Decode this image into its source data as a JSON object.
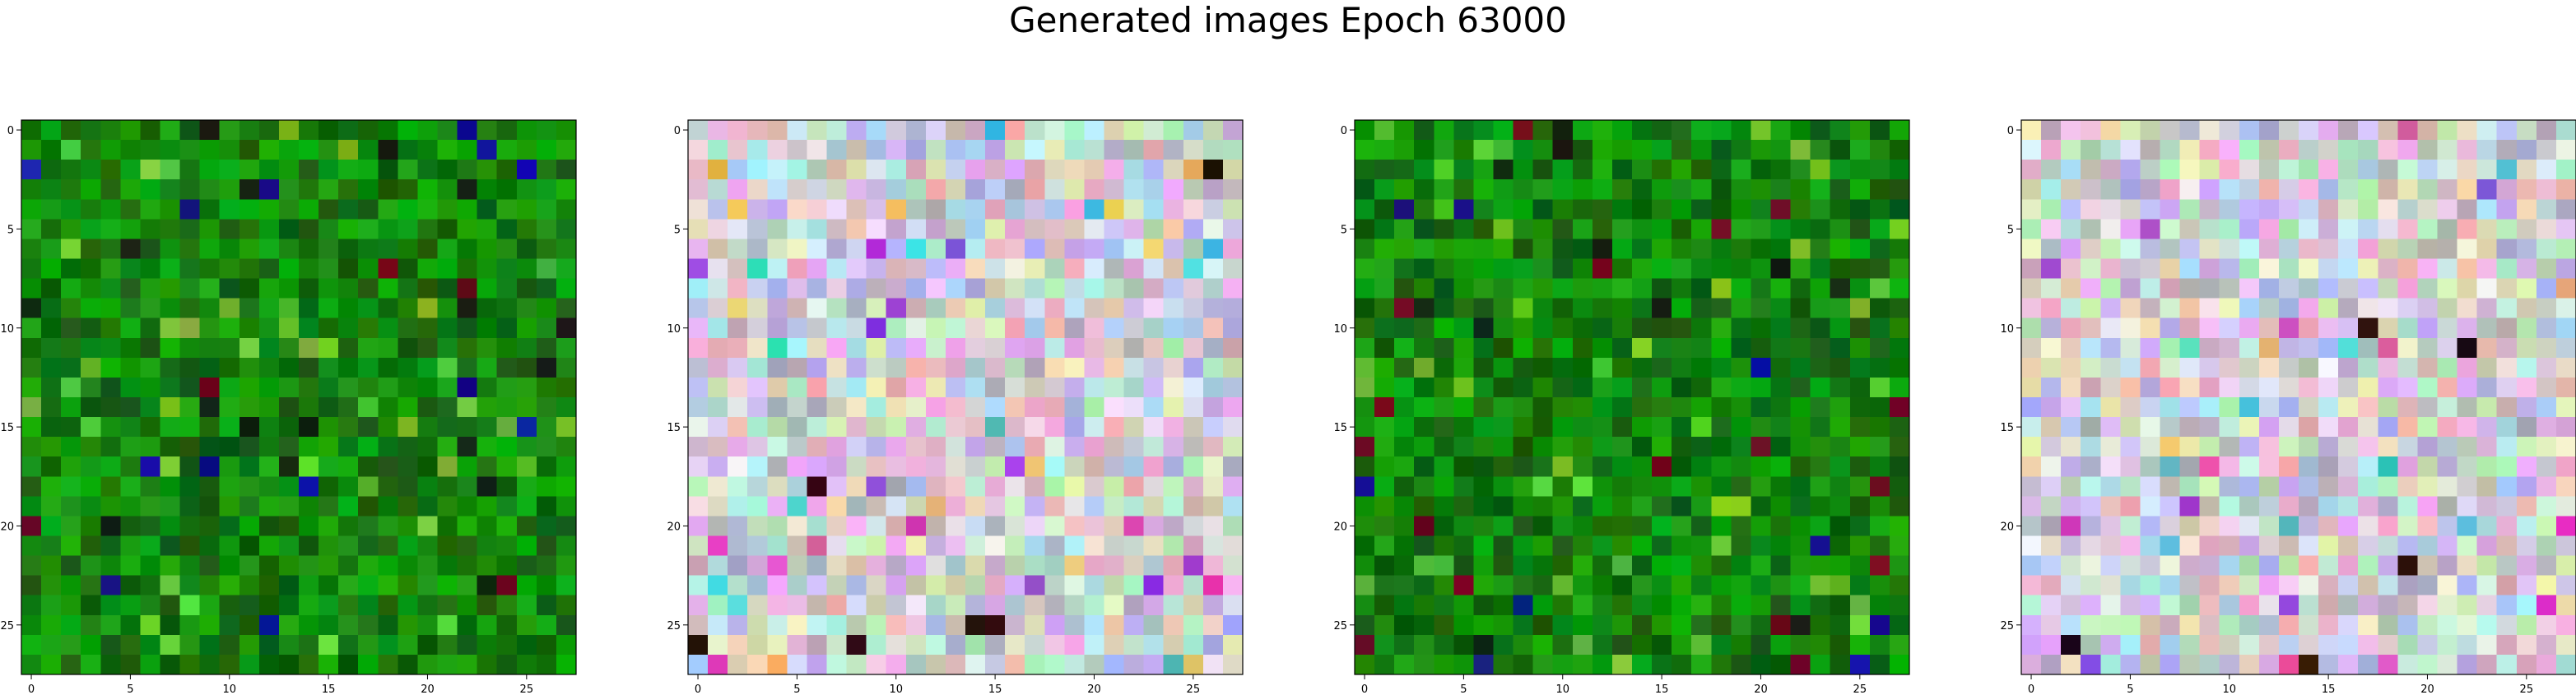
{
  "figure": {
    "title": "Generated images Epoch 63000"
  },
  "chart_data": [
    {
      "type": "heatmap",
      "palette": "green",
      "grid_size": [
        28,
        28
      ],
      "xticks": [
        0,
        5,
        10,
        15,
        20,
        25
      ],
      "yticks": [
        0,
        5,
        10,
        15,
        20,
        25
      ],
      "xlim": [
        -0.5,
        27.5
      ],
      "ylim": [
        27.5,
        -0.5
      ],
      "seed": 11
    },
    {
      "type": "heatmap",
      "palette": "pastel",
      "grid_size": [
        28,
        28
      ],
      "xticks": [
        0,
        5,
        10,
        15,
        20,
        25
      ],
      "yticks": [
        0,
        5,
        10,
        15,
        20,
        25
      ],
      "xlim": [
        -0.5,
        27.5
      ],
      "ylim": [
        27.5,
        -0.5
      ],
      "seed": 23
    },
    {
      "type": "heatmap",
      "palette": "green",
      "grid_size": [
        28,
        28
      ],
      "xticks": [
        0,
        5,
        10,
        15,
        20,
        25
      ],
      "yticks": [
        0,
        5,
        10,
        15,
        20,
        25
      ],
      "xlim": [
        -0.5,
        27.5
      ],
      "ylim": [
        27.5,
        -0.5
      ],
      "seed": 37
    },
    {
      "type": "heatmap",
      "palette": "pastel",
      "grid_size": [
        28,
        28
      ],
      "xticks": [
        0,
        5,
        10,
        15,
        20,
        25
      ],
      "yticks": [
        0,
        5,
        10,
        15,
        20,
        25
      ],
      "xlim": [
        -0.5,
        27.5
      ],
      "ylim": [
        27.5,
        -0.5
      ],
      "seed": 41
    }
  ]
}
